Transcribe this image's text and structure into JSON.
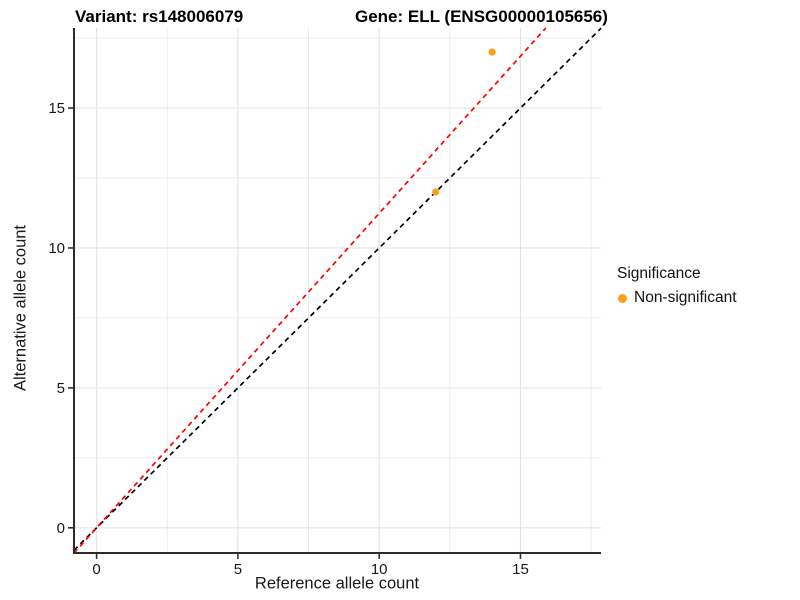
{
  "chart_data": {
    "type": "scatter",
    "title_left": "Variant: rs148006079",
    "title_right": "Gene: ELL (ENSG00000105656)",
    "xlabel": "Reference allele count",
    "ylabel": "Alternative allele count",
    "xlim": [
      -0.8,
      17.85
    ],
    "ylim": [
      -0.9,
      17.86
    ],
    "xticks": [
      0,
      5,
      10,
      15
    ],
    "yticks": [
      0,
      5,
      10,
      15
    ],
    "xminor": [
      2.5,
      7.5,
      12.5,
      17.5
    ],
    "yminor": [
      2.5,
      7.5,
      12.5,
      17.5
    ],
    "grid": "major+minor",
    "series": [
      {
        "name": "Non-significant",
        "color": "#F9A11B",
        "points": [
          {
            "x": 12,
            "y": 12
          },
          {
            "x": 14,
            "y": 17
          }
        ]
      }
    ],
    "lines": [
      {
        "name": "identity",
        "slope": 1.0,
        "intercept": 0,
        "color": "#000000",
        "style": "dashed"
      },
      {
        "name": "fit",
        "slope": 1.1235,
        "intercept": 0,
        "color": "#FF0000",
        "style": "dashed"
      }
    ],
    "legend": {
      "title": "Significance",
      "position": "right",
      "items": [
        {
          "label": "Non-significant",
          "color": "#F9A11B"
        }
      ]
    },
    "colors": {
      "grid_major": "#E3E3E3",
      "grid_minor": "#EBEBEB",
      "axis_line": "#2B2B2B",
      "tick_text": "#1A1A1A"
    }
  }
}
